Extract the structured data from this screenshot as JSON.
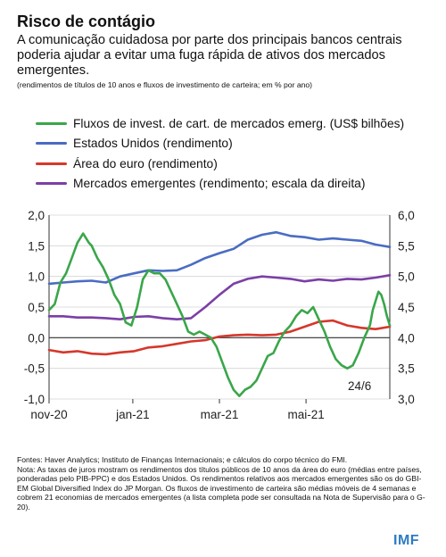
{
  "title": "Risco de contágio",
  "subtitle": "A comunicação cuidadosa por parte dos principais bancos centrais poderia ajudar a evitar uma fuga rápida de ativos dos mercados emergentes.",
  "units": "(rendimentos de títulos de 10 anos e fluxos de investimento de carteira; em % por ano)",
  "notes": {
    "sources": "Fontes: Haver Analytics; Instituto de Finanças Internacionais; e cálculos do corpo técnico do FMI.",
    "note": "Nota: As taxas de juros mostram os rendimentos dos títulos públicos de 10 anos da área do euro (médias entre países, ponderadas pelo PIB-PPC) e dos Estados Unidos. Os rendimentos relativos aos mercados emergentes são os do GBI-EM Global Diversified Index do JP Morgan. Os fluxos de investimento de carteira são médias móveis de 4 semanas e cobrem 21 economias de mercados emergentes (a lista completa pode ser consultada na Nota de Supervisão para o G-20)."
  },
  "logo": "IMF",
  "chart_data": {
    "type": "line",
    "annotation": "24/6",
    "x_ticks": [
      "nov-20",
      "jan-21",
      "mar-21",
      "mai-21"
    ],
    "x_tick_positions": [
      0,
      59,
      120,
      181
    ],
    "x_range": [
      0,
      240
    ],
    "y_left": {
      "range": [
        -1.0,
        2.0
      ],
      "ticks": [
        "-1,0",
        "-0,5",
        "0,0",
        "0,5",
        "1,0",
        "1,5",
        "2,0"
      ]
    },
    "y_right": {
      "range": [
        3.0,
        6.0
      ],
      "ticks": [
        "3,0",
        "3,5",
        "4,0",
        "4,5",
        "5,0",
        "5,5",
        "6,0"
      ]
    },
    "grid": true,
    "legend_position": "top",
    "series": [
      {
        "name": "Fluxos de invest. de cart. de mercados emerg. (US$ bilhões)",
        "color": "#3aa64a",
        "axis": "left",
        "x": [
          0,
          4,
          8,
          12,
          16,
          20,
          24,
          28,
          30,
          34,
          38,
          42,
          46,
          50,
          54,
          58,
          62,
          66,
          70,
          74,
          78,
          82,
          86,
          90,
          94,
          98,
          102,
          106,
          110,
          114,
          118,
          122,
          126,
          130,
          134,
          138,
          142,
          146,
          150,
          154,
          158,
          162,
          166,
          170,
          174,
          178,
          182,
          186,
          190,
          194,
          198,
          202,
          206,
          210,
          214,
          218,
          222,
          226,
          228,
          232,
          234,
          236,
          238,
          240
        ],
        "values": [
          0.45,
          0.55,
          0.9,
          1.05,
          1.3,
          1.55,
          1.7,
          1.55,
          1.5,
          1.3,
          1.15,
          0.95,
          0.7,
          0.55,
          0.25,
          0.2,
          0.5,
          0.95,
          1.1,
          1.05,
          1.05,
          0.95,
          0.75,
          0.55,
          0.35,
          0.1,
          0.05,
          0.1,
          0.05,
          0.0,
          -0.15,
          -0.4,
          -0.65,
          -0.85,
          -0.95,
          -0.85,
          -0.8,
          -0.7,
          -0.5,
          -0.3,
          -0.25,
          -0.05,
          0.1,
          0.2,
          0.35,
          0.45,
          0.4,
          0.5,
          0.3,
          0.1,
          -0.15,
          -0.35,
          -0.45,
          -0.5,
          -0.45,
          -0.25,
          0.0,
          0.2,
          0.45,
          0.75,
          0.7,
          0.55,
          0.35,
          0.2
        ]
      },
      {
        "name": "Estados Unidos (rendimento)",
        "color": "#4a6cc2",
        "axis": "left",
        "x": [
          0,
          10,
          20,
          30,
          40,
          50,
          60,
          70,
          80,
          90,
          100,
          110,
          120,
          130,
          140,
          150,
          160,
          170,
          180,
          190,
          200,
          210,
          220,
          230,
          240
        ],
        "values": [
          0.88,
          0.9,
          0.92,
          0.93,
          0.9,
          1.0,
          1.05,
          1.1,
          1.09,
          1.1,
          1.19,
          1.3,
          1.38,
          1.45,
          1.6,
          1.68,
          1.72,
          1.66,
          1.64,
          1.6,
          1.62,
          1.6,
          1.58,
          1.52,
          1.48
        ]
      },
      {
        "name": "Área do euro (rendimento)",
        "color": "#d6372b",
        "axis": "left",
        "x": [
          0,
          10,
          20,
          30,
          40,
          50,
          60,
          70,
          80,
          90,
          100,
          110,
          120,
          130,
          140,
          150,
          160,
          170,
          180,
          190,
          200,
          210,
          220,
          230,
          240
        ],
        "values": [
          -0.2,
          -0.24,
          -0.22,
          -0.26,
          -0.27,
          -0.24,
          -0.22,
          -0.16,
          -0.14,
          -0.1,
          -0.06,
          -0.04,
          0.02,
          0.04,
          0.05,
          0.04,
          0.05,
          0.1,
          0.18,
          0.26,
          0.28,
          0.2,
          0.16,
          0.14,
          0.18
        ]
      },
      {
        "name": "Mercados emergentes (rendimento; escala da direita)",
        "color": "#7b3fa6",
        "axis": "right",
        "x": [
          0,
          10,
          20,
          30,
          40,
          50,
          60,
          70,
          80,
          90,
          100,
          110,
          120,
          130,
          140,
          150,
          160,
          170,
          180,
          190,
          200,
          210,
          220,
          230,
          240
        ],
        "values": [
          4.35,
          4.35,
          4.33,
          4.33,
          4.32,
          4.3,
          4.34,
          4.35,
          4.32,
          4.3,
          4.32,
          4.5,
          4.7,
          4.88,
          4.96,
          5.0,
          4.98,
          4.96,
          4.92,
          4.95,
          4.93,
          4.96,
          4.95,
          4.98,
          5.02
        ]
      }
    ]
  }
}
